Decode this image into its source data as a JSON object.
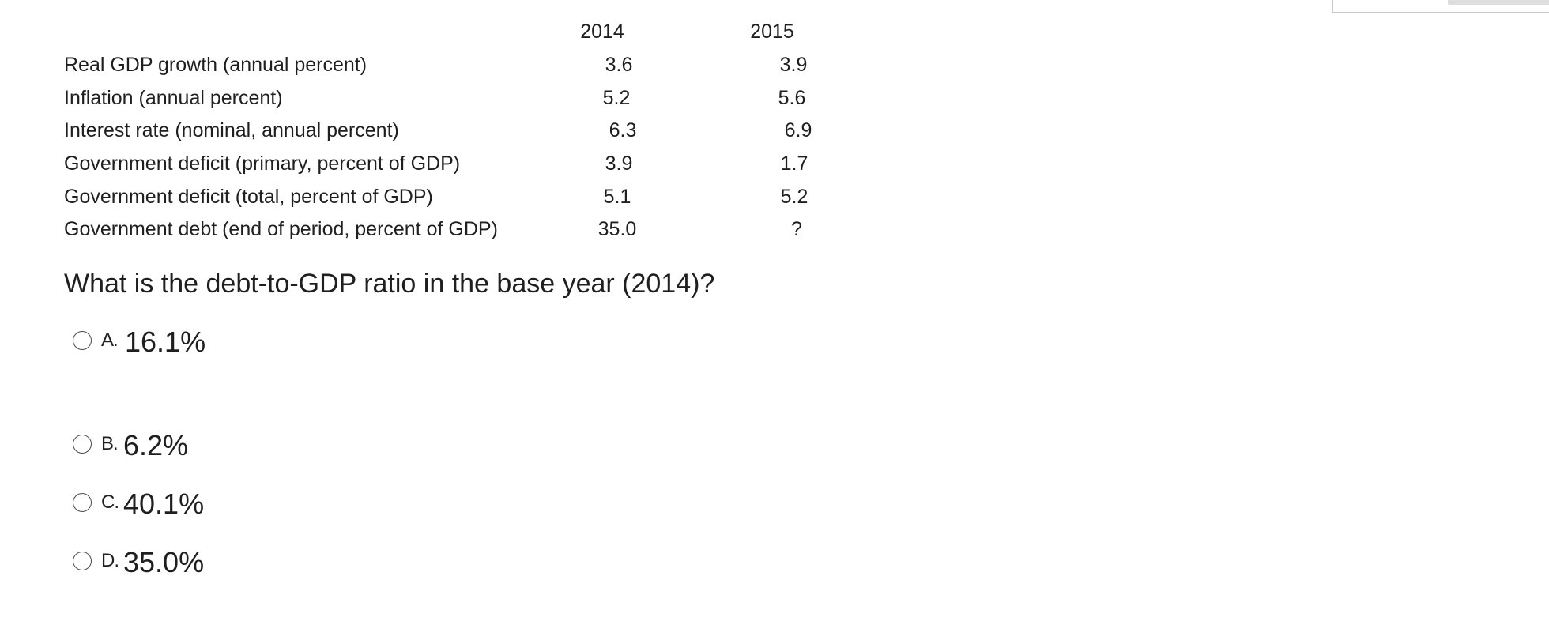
{
  "table": {
    "years": [
      "2014",
      "2015"
    ],
    "rows": [
      {
        "label": "Real GDP growth (annual percent)",
        "v2014": "3.6",
        "v2015": "3.9"
      },
      {
        "label": "Inflation (annual percent)",
        "v2014": "5.2",
        "v2015": "5.6"
      },
      {
        "label": "Interest rate (nominal, annual percent)",
        "v2014": "6.3",
        "v2015": "6.9"
      },
      {
        "label": "Government deficit (primary, percent of GDP)",
        "v2014": "3.9",
        "v2015": "1.7"
      },
      {
        "label": "Government deficit (total, percent of GDP)",
        "v2014": "5.1",
        "v2015": "5.2"
      },
      {
        "label": "Government debt (end of period, percent of GDP)",
        "v2014": "35.0",
        "v2015": "?"
      }
    ]
  },
  "question": "What is the debt-to-GDP ratio in the base year (2014)?",
  "options": [
    {
      "letter": "A.",
      "text": "16.1%"
    },
    {
      "letter": "B.",
      "text": "6.2%"
    },
    {
      "letter": "C.",
      "text": "40.1%"
    },
    {
      "letter": "D.",
      "text": "35.0%"
    }
  ],
  "icons": {
    "radio": "radio-button-icon"
  }
}
